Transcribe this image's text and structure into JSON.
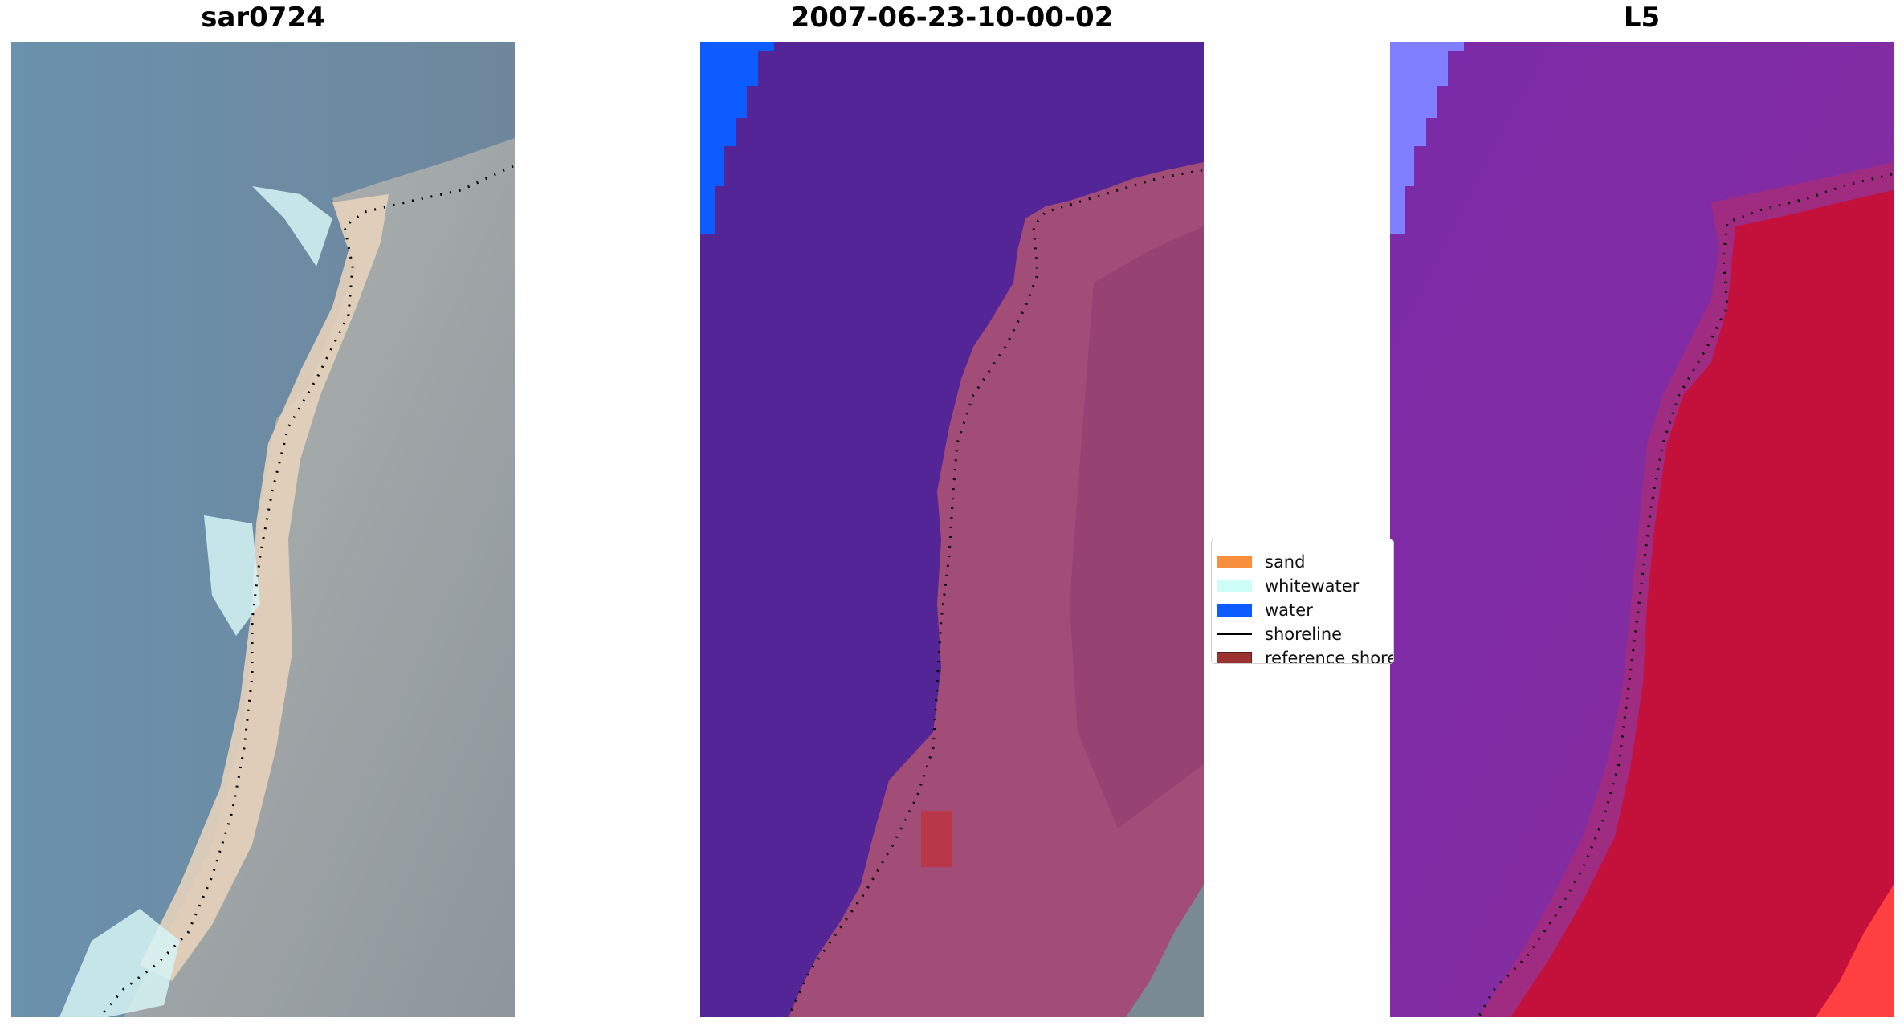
{
  "panels": {
    "left": {
      "title": "sar0724"
    },
    "middle": {
      "title": "2007-06-23-10-00-02"
    },
    "right": {
      "title": "L5"
    }
  },
  "legend": {
    "items": [
      {
        "label": "sand",
        "color": "#f78f3c"
      },
      {
        "label": "whitewater",
        "color": "#cdfff8"
      },
      {
        "label": "water",
        "color": "#0c5cff"
      },
      {
        "label": "shoreline",
        "color": "#000000"
      },
      {
        "label": "reference shoreline",
        "color": "#9b3131"
      }
    ]
  },
  "colors": {
    "rgb_water": "#6a8aa5",
    "rgb_land": "#a6a8ab",
    "rgb_beach": "#e8d6bf",
    "rgb_surf": "#d6f4f5",
    "class_water": "#532596",
    "class_land": "#a14d78",
    "class_water_blue": "#0c5cff",
    "class_grey": "#7a8a95",
    "class_red_patch": "#b8384a",
    "mndwi_water": "#7c2aa6",
    "mndwi_land": "#c3113b",
    "mndwi_blue": "#7f7fff",
    "mndwi_red": "#ff4040"
  }
}
